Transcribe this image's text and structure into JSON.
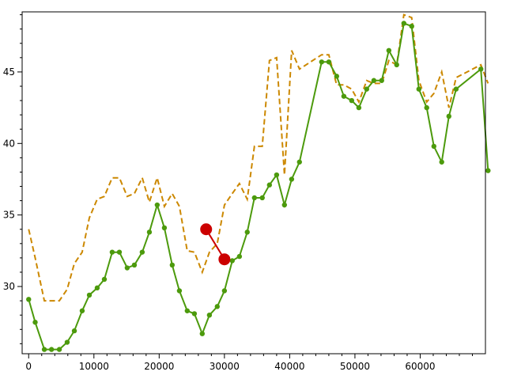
{
  "chart_data": {
    "type": "line",
    "title": "",
    "xlabel": "",
    "ylabel": "",
    "xlim": [
      -1000,
      70000
    ],
    "ylim": [
      25.3,
      49.2
    ],
    "x_ticks": [
      0,
      10000,
      20000,
      30000,
      40000,
      50000,
      60000
    ],
    "x_tick_labels": [
      "0",
      "10000",
      "20000",
      "30000",
      "40000",
      "50000",
      "60000"
    ],
    "x_minor_step": 2000,
    "y_ticks": [
      30,
      35,
      40,
      45
    ],
    "y_tick_labels": [
      "30",
      "35",
      "40",
      "45"
    ],
    "y_minor_step": 1,
    "grid": false,
    "legend": "none",
    "series": [
      {
        "style": "solid-with-markers",
        "color": "#4c9a0c",
        "x": [
          0,
          1000,
          2400,
          3500,
          4700,
          5900,
          7000,
          8200,
          9300,
          10500,
          11600,
          12800,
          13900,
          15100,
          16200,
          17400,
          18500,
          19700,
          20800,
          22000,
          23100,
          24300,
          25400,
          26600,
          27700,
          28900,
          30000,
          31200,
          32300,
          33500,
          34600,
          35800,
          36900,
          38000,
          39200,
          40300,
          41500,
          44900,
          46000,
          47200,
          48300,
          49500,
          50600,
          51800,
          52900,
          54100,
          55200,
          56400,
          57500,
          58700,
          59800,
          61000,
          62100,
          63300,
          64400,
          65500,
          69300,
          70400
        ],
        "y": [
          29.1,
          27.5,
          25.6,
          25.6,
          25.6,
          26.1,
          26.9,
          28.3,
          29.4,
          29.9,
          30.5,
          32.4,
          32.4,
          31.3,
          31.5,
          32.4,
          33.8,
          35.7,
          34.1,
          31.5,
          29.7,
          28.3,
          28.1,
          26.7,
          28.0,
          28.6,
          29.7,
          31.8,
          32.1,
          33.8,
          36.2,
          36.2,
          37.1,
          37.8,
          35.7,
          37.5,
          38.7,
          45.7,
          45.7,
          44.7,
          43.3,
          43.0,
          42.5,
          43.8,
          44.4,
          44.4,
          46.5,
          45.5,
          48.4,
          48.2,
          43.8,
          42.5,
          39.8,
          38.7,
          41.9,
          43.8,
          45.2,
          38.1
        ]
      },
      {
        "style": "dashed",
        "color": "#cc8800",
        "x": [
          0,
          1000,
          2400,
          3500,
          4700,
          5900,
          7000,
          8200,
          9300,
          10500,
          11600,
          12800,
          13900,
          15100,
          16200,
          17400,
          18500,
          19700,
          20800,
          22000,
          23100,
          24300,
          25400,
          26600,
          27700,
          28900,
          30000,
          31200,
          32300,
          33500,
          34600,
          35800,
          36900,
          38000,
          39200,
          40300,
          41500,
          44900,
          46000,
          47200,
          48300,
          49500,
          50600,
          51800,
          52900,
          54100,
          55200,
          56400,
          57500,
          58700,
          59800,
          61000,
          62100,
          63300,
          64400,
          65500,
          69300,
          70400
        ],
        "y": [
          34.0,
          32.0,
          29.0,
          29.0,
          29.0,
          29.8,
          31.6,
          32.4,
          34.8,
          36.1,
          36.3,
          37.6,
          37.6,
          36.3,
          36.5,
          37.6,
          35.9,
          37.6,
          35.6,
          36.5,
          35.6,
          32.5,
          32.4,
          31.0,
          32.4,
          33.0,
          35.7,
          36.5,
          37.2,
          36.1,
          39.8,
          39.8,
          45.8,
          46.0,
          37.8,
          46.5,
          45.2,
          46.2,
          46.2,
          44.1,
          44.1,
          43.8,
          42.9,
          44.4,
          44.2,
          44.2,
          45.8,
          45.5,
          49.0,
          48.8,
          44.4,
          42.9,
          43.5,
          45.0,
          42.5,
          44.6,
          45.5,
          44.2
        ]
      },
      {
        "style": "highlight-segment",
        "color": "#cc0000",
        "x": [
          27200,
          30000
        ],
        "y": [
          34.0,
          31.9
        ]
      }
    ]
  }
}
